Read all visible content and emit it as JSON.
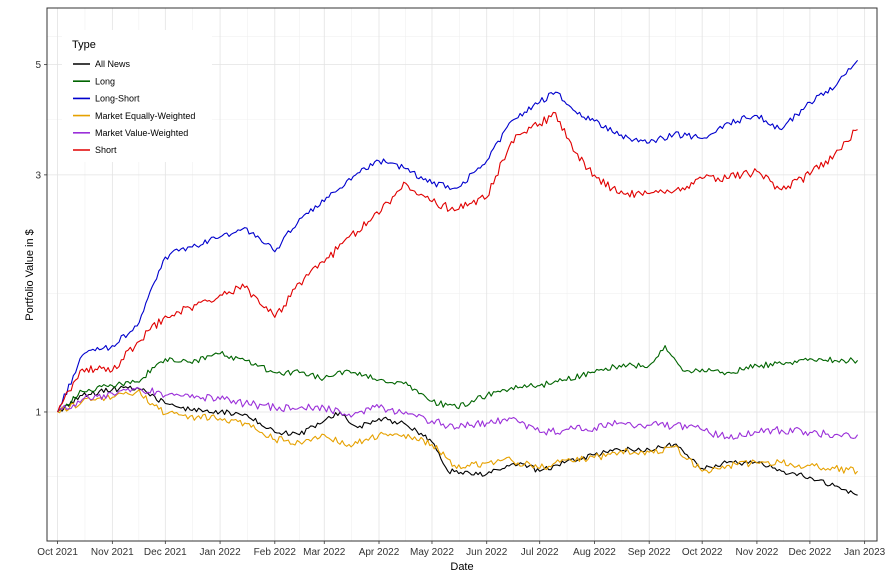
{
  "chart_data": {
    "type": "line",
    "title": "",
    "xlabel": "Date",
    "ylabel": "Portfolio Value in $",
    "y_scale": "log",
    "ylim": [
      0.55,
      6.5
    ],
    "xlim": [
      "2021-09-25",
      "2023-01-08"
    ],
    "y_ticks": [
      1,
      3,
      5
    ],
    "y_tick_labels": [
      "1",
      "3",
      "5"
    ],
    "x_ticks": [
      "2021-10-01",
      "2021-11-01",
      "2021-12-01",
      "2022-01-01",
      "2022-02-01",
      "2022-03-01",
      "2022-04-01",
      "2022-05-01",
      "2022-06-01",
      "2022-07-01",
      "2022-08-01",
      "2022-09-01",
      "2022-10-01",
      "2022-11-01",
      "2022-12-01",
      "2023-01-01"
    ],
    "x_tick_labels": [
      "Oct 2021",
      "Nov 2021",
      "Dec 2021",
      "Jan 2022",
      "Feb 2022",
      "Mar 2022",
      "Apr 2022",
      "May 2022",
      "Jun 2022",
      "Jul 2022",
      "Aug 2022",
      "Sep 2022",
      "Oct 2022",
      "Nov 2022",
      "Dec 2022",
      "Jan 2023"
    ],
    "grid": true,
    "legend": {
      "title": "Type",
      "position": "top-left"
    },
    "series": [
      {
        "name": "All News",
        "color": "#000000",
        "points": [
          [
            "2021-10-01",
            1.0
          ],
          [
            "2021-10-15",
            1.08
          ],
          [
            "2021-11-01",
            1.11
          ],
          [
            "2021-11-15",
            1.12
          ],
          [
            "2021-12-01",
            1.04
          ],
          [
            "2021-12-15",
            1.01
          ],
          [
            "2022-01-01",
            1.0
          ],
          [
            "2022-01-15",
            0.99
          ],
          [
            "2022-02-01",
            0.91
          ],
          [
            "2022-02-15",
            0.9
          ],
          [
            "2022-03-01",
            0.96
          ],
          [
            "2022-03-10",
            1.0
          ],
          [
            "2022-03-20",
            0.93
          ],
          [
            "2022-04-01",
            0.97
          ],
          [
            "2022-04-15",
            0.95
          ],
          [
            "2022-05-01",
            0.87
          ],
          [
            "2022-05-10",
            0.76
          ],
          [
            "2022-06-01",
            0.75
          ],
          [
            "2022-06-20",
            0.79
          ],
          [
            "2022-07-01",
            0.76
          ],
          [
            "2022-07-15",
            0.79
          ],
          [
            "2022-08-01",
            0.82
          ],
          [
            "2022-08-15",
            0.84
          ],
          [
            "2022-09-01",
            0.84
          ],
          [
            "2022-09-15",
            0.86
          ],
          [
            "2022-10-01",
            0.77
          ],
          [
            "2022-10-15",
            0.79
          ],
          [
            "2022-11-01",
            0.79
          ],
          [
            "2022-11-15",
            0.76
          ],
          [
            "2022-12-01",
            0.74
          ],
          [
            "2022-12-15",
            0.71
          ],
          [
            "2022-12-28",
            0.68
          ]
        ]
      },
      {
        "name": "Long",
        "color": "#006400",
        "points": [
          [
            "2021-10-01",
            1.0
          ],
          [
            "2021-10-15",
            1.1
          ],
          [
            "2021-11-01",
            1.13
          ],
          [
            "2021-11-15",
            1.15
          ],
          [
            "2021-12-01",
            1.28
          ],
          [
            "2021-12-15",
            1.26
          ],
          [
            "2022-01-01",
            1.31
          ],
          [
            "2022-01-15",
            1.27
          ],
          [
            "2022-02-01",
            1.2
          ],
          [
            "2022-02-15",
            1.2
          ],
          [
            "2022-03-01",
            1.17
          ],
          [
            "2022-03-15",
            1.21
          ],
          [
            "2022-04-01",
            1.16
          ],
          [
            "2022-04-15",
            1.14
          ],
          [
            "2022-05-01",
            1.05
          ],
          [
            "2022-05-15",
            1.02
          ],
          [
            "2022-06-01",
            1.08
          ],
          [
            "2022-06-15",
            1.12
          ],
          [
            "2022-07-01",
            1.13
          ],
          [
            "2022-07-15",
            1.16
          ],
          [
            "2022-08-01",
            1.2
          ],
          [
            "2022-08-15",
            1.24
          ],
          [
            "2022-09-01",
            1.24
          ],
          [
            "2022-09-10",
            1.36
          ],
          [
            "2022-09-20",
            1.21
          ],
          [
            "2022-10-01",
            1.22
          ],
          [
            "2022-10-15",
            1.2
          ],
          [
            "2022-11-01",
            1.24
          ],
          [
            "2022-11-15",
            1.25
          ],
          [
            "2022-12-01",
            1.28
          ],
          [
            "2022-12-15",
            1.27
          ],
          [
            "2022-12-28",
            1.27
          ]
        ]
      },
      {
        "name": "Long-Short",
        "color": "#0000CD",
        "points": [
          [
            "2021-10-01",
            1.0
          ],
          [
            "2021-10-15",
            1.3
          ],
          [
            "2021-11-01",
            1.36
          ],
          [
            "2021-11-15",
            1.49
          ],
          [
            "2021-12-01",
            2.05
          ],
          [
            "2021-12-15",
            2.15
          ],
          [
            "2022-01-01",
            2.25
          ],
          [
            "2022-01-15",
            2.35
          ],
          [
            "2022-02-01",
            2.1
          ],
          [
            "2022-02-15",
            2.45
          ],
          [
            "2022-03-01",
            2.65
          ],
          [
            "2022-03-15",
            2.95
          ],
          [
            "2022-04-01",
            3.2
          ],
          [
            "2022-04-15",
            3.1
          ],
          [
            "2022-05-01",
            2.88
          ],
          [
            "2022-05-15",
            2.82
          ],
          [
            "2022-06-01",
            3.2
          ],
          [
            "2022-06-15",
            3.85
          ],
          [
            "2022-07-01",
            4.2
          ],
          [
            "2022-07-10",
            4.4
          ],
          [
            "2022-07-20",
            4.05
          ],
          [
            "2022-08-01",
            3.85
          ],
          [
            "2022-08-15",
            3.6
          ],
          [
            "2022-09-01",
            3.48
          ],
          [
            "2022-09-15",
            3.62
          ],
          [
            "2022-10-01",
            3.55
          ],
          [
            "2022-10-15",
            3.82
          ],
          [
            "2022-11-01",
            3.95
          ],
          [
            "2022-11-15",
            3.7
          ],
          [
            "2022-12-01",
            4.2
          ],
          [
            "2022-12-15",
            4.5
          ],
          [
            "2022-12-28",
            5.1
          ]
        ]
      },
      {
        "name": "Market Equally-Weighted",
        "color": "#E6A100",
        "points": [
          [
            "2021-10-01",
            1.0
          ],
          [
            "2021-10-15",
            1.05
          ],
          [
            "2021-11-01",
            1.07
          ],
          [
            "2021-11-15",
            1.1
          ],
          [
            "2021-12-01",
            0.99
          ],
          [
            "2021-12-15",
            0.98
          ],
          [
            "2022-01-01",
            0.97
          ],
          [
            "2022-01-15",
            0.95
          ],
          [
            "2022-02-01",
            0.88
          ],
          [
            "2022-02-15",
            0.87
          ],
          [
            "2022-03-01",
            0.9
          ],
          [
            "2022-03-15",
            0.86
          ],
          [
            "2022-04-01",
            0.9
          ],
          [
            "2022-04-15",
            0.9
          ],
          [
            "2022-05-01",
            0.86
          ],
          [
            "2022-05-15",
            0.77
          ],
          [
            "2022-06-01",
            0.79
          ],
          [
            "2022-06-15",
            0.8
          ],
          [
            "2022-07-01",
            0.77
          ],
          [
            "2022-07-15",
            0.8
          ],
          [
            "2022-08-01",
            0.81
          ],
          [
            "2022-08-15",
            0.83
          ],
          [
            "2022-09-01",
            0.83
          ],
          [
            "2022-09-15",
            0.85
          ],
          [
            "2022-10-01",
            0.76
          ],
          [
            "2022-10-15",
            0.78
          ],
          [
            "2022-11-01",
            0.79
          ],
          [
            "2022-11-15",
            0.79
          ],
          [
            "2022-12-01",
            0.78
          ],
          [
            "2022-12-15",
            0.77
          ],
          [
            "2022-12-28",
            0.76
          ]
        ]
      },
      {
        "name": "Market Value-Weighted",
        "color": "#9B30D9",
        "points": [
          [
            "2021-10-01",
            1.0
          ],
          [
            "2021-10-15",
            1.06
          ],
          [
            "2021-11-01",
            1.09
          ],
          [
            "2021-11-15",
            1.12
          ],
          [
            "2021-12-01",
            1.08
          ],
          [
            "2021-12-15",
            1.07
          ],
          [
            "2022-01-01",
            1.06
          ],
          [
            "2022-01-15",
            1.04
          ],
          [
            "2022-02-01",
            1.02
          ],
          [
            "2022-02-15",
            1.02
          ],
          [
            "2022-03-01",
            1.02
          ],
          [
            "2022-03-15",
            0.99
          ],
          [
            "2022-04-01",
            1.02
          ],
          [
            "2022-04-15",
            0.99
          ],
          [
            "2022-05-01",
            0.96
          ],
          [
            "2022-05-15",
            0.93
          ],
          [
            "2022-06-01",
            0.95
          ],
          [
            "2022-06-15",
            0.97
          ],
          [
            "2022-07-01",
            0.91
          ],
          [
            "2022-07-15",
            0.92
          ],
          [
            "2022-08-01",
            0.93
          ],
          [
            "2022-08-15",
            0.95
          ],
          [
            "2022-09-01",
            0.94
          ],
          [
            "2022-09-15",
            0.94
          ],
          [
            "2022-10-01",
            0.92
          ],
          [
            "2022-10-15",
            0.89
          ],
          [
            "2022-11-01",
            0.91
          ],
          [
            "2022-11-15",
            0.92
          ],
          [
            "2022-12-01",
            0.91
          ],
          [
            "2022-12-15",
            0.9
          ],
          [
            "2022-12-28",
            0.9
          ]
        ]
      },
      {
        "name": "Short",
        "color": "#E00000",
        "points": [
          [
            "2021-10-01",
            1.0
          ],
          [
            "2021-10-15",
            1.22
          ],
          [
            "2021-11-01",
            1.21
          ],
          [
            "2021-11-15",
            1.38
          ],
          [
            "2021-12-01",
            1.56
          ],
          [
            "2021-12-15",
            1.62
          ],
          [
            "2022-01-01",
            1.72
          ],
          [
            "2022-01-15",
            1.78
          ],
          [
            "2022-02-01",
            1.55
          ],
          [
            "2022-02-15",
            1.82
          ],
          [
            "2022-03-01",
            2.0
          ],
          [
            "2022-03-15",
            2.25
          ],
          [
            "2022-04-01",
            2.5
          ],
          [
            "2022-04-15",
            2.9
          ],
          [
            "2022-05-01",
            2.65
          ],
          [
            "2022-05-15",
            2.55
          ],
          [
            "2022-06-01",
            2.7
          ],
          [
            "2022-06-15",
            3.5
          ],
          [
            "2022-07-01",
            3.8
          ],
          [
            "2022-07-10",
            4.0
          ],
          [
            "2022-07-20",
            3.35
          ],
          [
            "2022-08-01",
            3.0
          ],
          [
            "2022-08-15",
            2.75
          ],
          [
            "2022-09-01",
            2.75
          ],
          [
            "2022-09-15",
            2.78
          ],
          [
            "2022-10-01",
            2.95
          ],
          [
            "2022-10-15",
            2.95
          ],
          [
            "2022-11-01",
            3.05
          ],
          [
            "2022-11-15",
            2.8
          ],
          [
            "2022-12-01",
            3.0
          ],
          [
            "2022-12-15",
            3.3
          ],
          [
            "2022-12-28",
            3.7
          ]
        ]
      }
    ]
  }
}
